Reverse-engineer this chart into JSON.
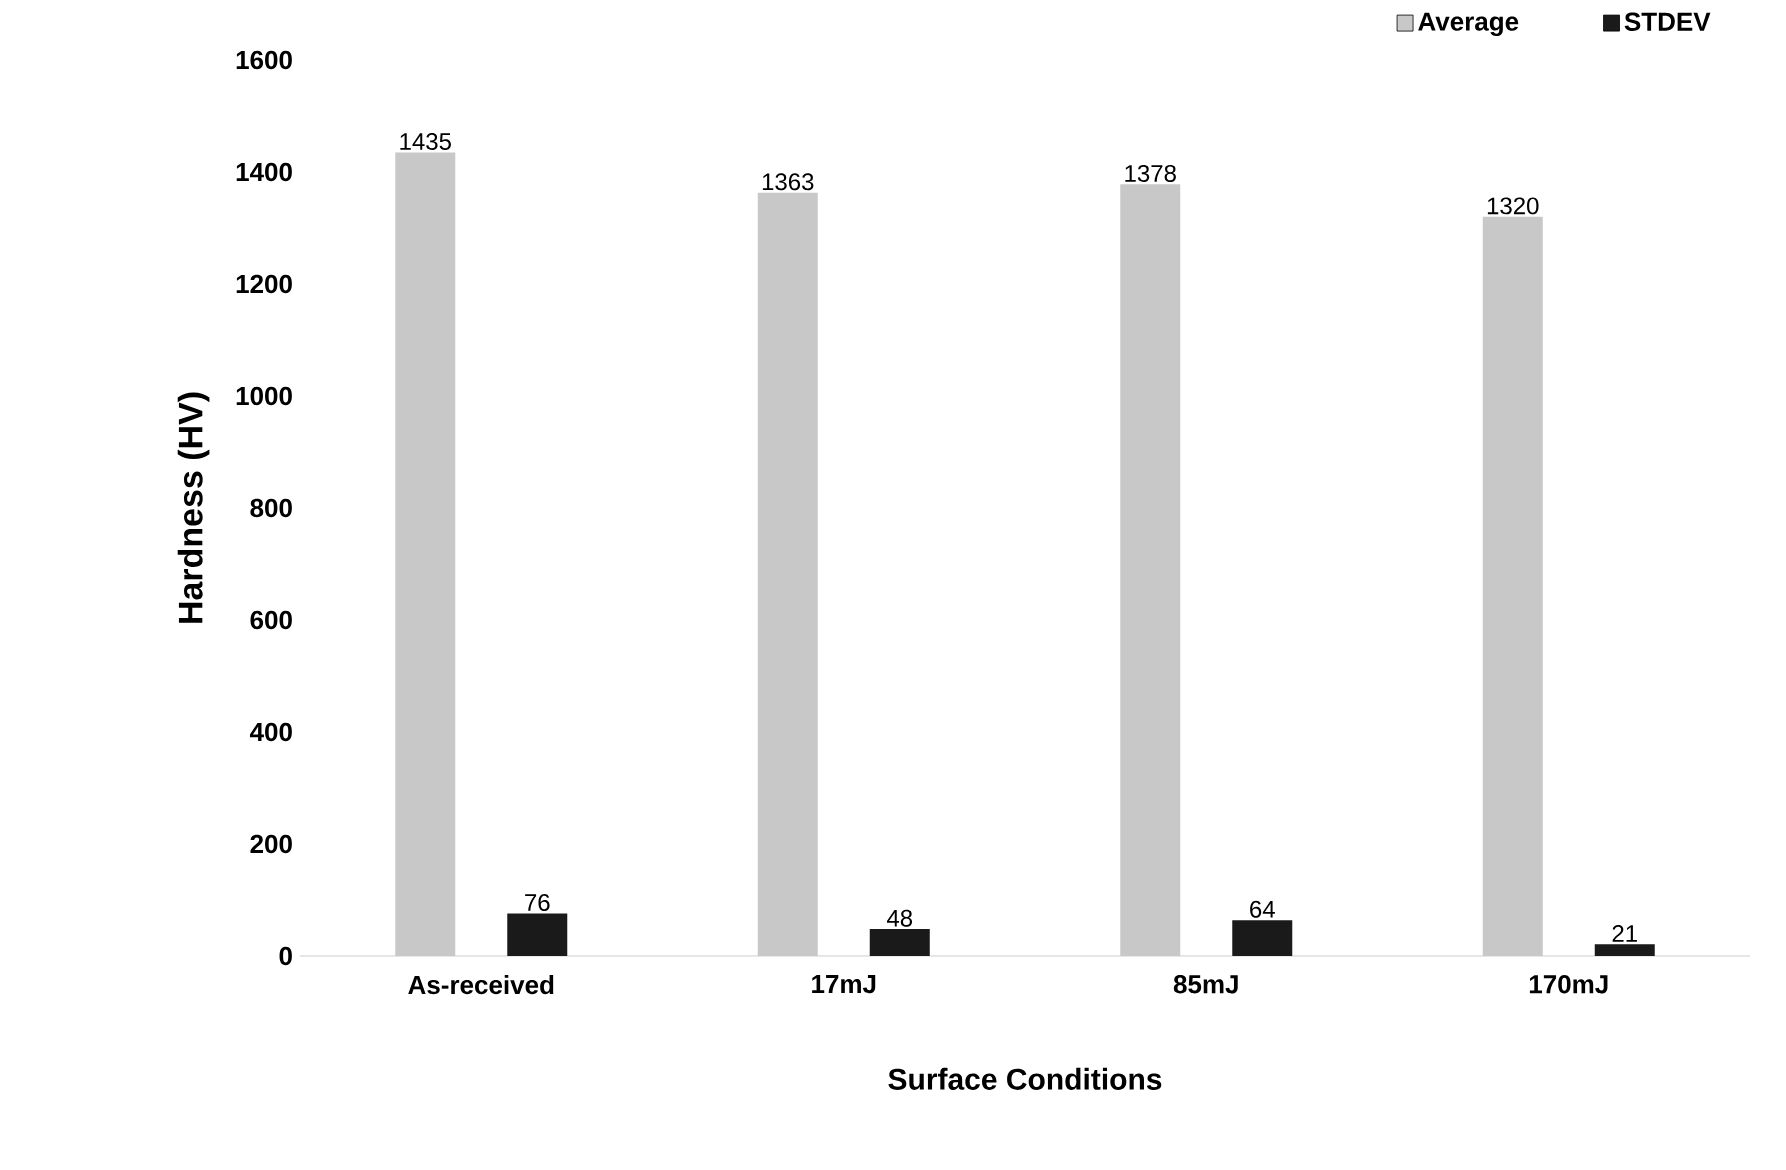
{
  "chart_data": {
    "type": "bar",
    "xlabel": "Surface Conditions",
    "ylabel": "Hardness (HV)",
    "categories": [
      "As-received",
      "17mJ",
      "85mJ",
      "170mJ"
    ],
    "series": [
      {
        "name": "Average",
        "color": "#c8c8c8",
        "values": [
          1435,
          1363,
          1378,
          1320
        ]
      },
      {
        "name": "STDEV",
        "color": "#1a1a1a",
        "values": [
          76,
          48,
          64,
          21
        ]
      }
    ],
    "ylim": [
      0,
      1600
    ],
    "yticks": [
      0,
      200,
      400,
      600,
      800,
      1000,
      1200,
      1400,
      1600
    ],
    "data_labels": true,
    "legend": "top right"
  }
}
